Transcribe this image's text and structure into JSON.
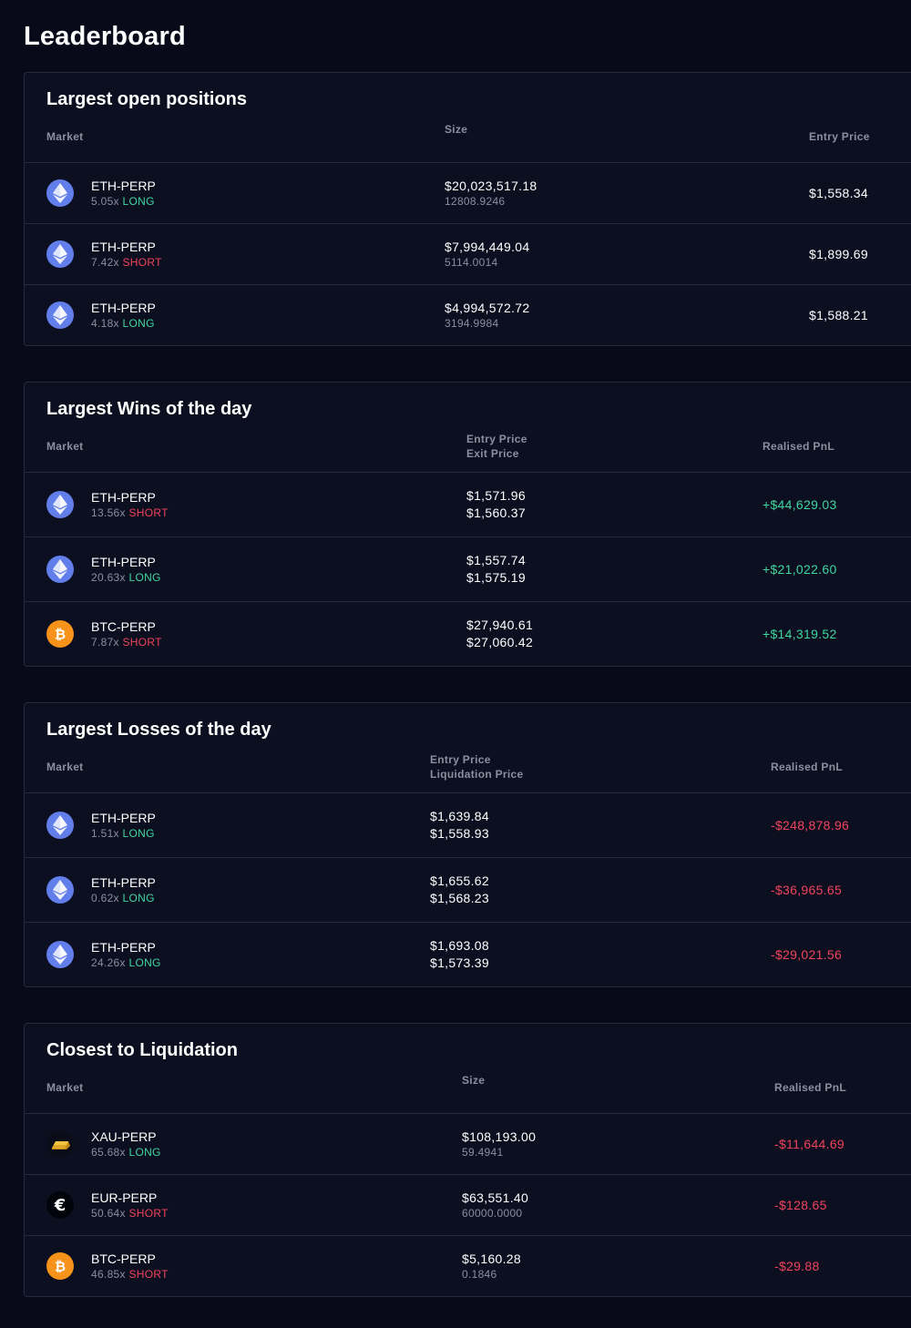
{
  "page": {
    "title": "Leaderboard"
  },
  "open_positions": {
    "title": "Largest open positions",
    "headers": {
      "market": "Market",
      "size": "Size",
      "entry": "Entry Price"
    },
    "rows": [
      {
        "market": "ETH-PERP",
        "icon": "eth-icon",
        "leverage": "5.05x",
        "side": "LONG",
        "size": "$20,023,517.18",
        "amount": "12808.9246",
        "entry": "$1,558.34"
      },
      {
        "market": "ETH-PERP",
        "icon": "eth-icon",
        "leverage": "7.42x",
        "side": "SHORT",
        "size": "$7,994,449.04",
        "amount": "5114.0014",
        "entry": "$1,899.69"
      },
      {
        "market": "ETH-PERP",
        "icon": "eth-icon",
        "leverage": "4.18x",
        "side": "LONG",
        "size": "$4,994,572.72",
        "amount": "3194.9984",
        "entry": "$1,588.21"
      }
    ]
  },
  "wins": {
    "title": "Largest Wins of the day",
    "headers": {
      "market": "Market",
      "price1": "Entry Price",
      "price2": "Exit Price",
      "pnl": "Realised PnL"
    },
    "rows": [
      {
        "market": "ETH-PERP",
        "icon": "eth-icon",
        "leverage": "13.56x",
        "side": "SHORT",
        "price1": "$1,571.96",
        "price2": "$1,560.37",
        "pnl": "+$44,629.03"
      },
      {
        "market": "ETH-PERP",
        "icon": "eth-icon",
        "leverage": "20.63x",
        "side": "LONG",
        "price1": "$1,557.74",
        "price2": "$1,575.19",
        "pnl": "+$21,022.60"
      },
      {
        "market": "BTC-PERP",
        "icon": "btc-icon",
        "leverage": "7.87x",
        "side": "SHORT",
        "price1": "$27,940.61",
        "price2": "$27,060.42",
        "pnl": "+$14,319.52"
      }
    ]
  },
  "losses": {
    "title": "Largest Losses of the day",
    "headers": {
      "market": "Market",
      "price1": "Entry Price",
      "price2": "Liquidation Price",
      "pnl": "Realised PnL"
    },
    "rows": [
      {
        "market": "ETH-PERP",
        "icon": "eth-icon",
        "leverage": "1.51x",
        "side": "LONG",
        "price1": "$1,639.84",
        "price2": "$1,558.93",
        "pnl": "-$248,878.96"
      },
      {
        "market": "ETH-PERP",
        "icon": "eth-icon",
        "leverage": "0.62x",
        "side": "LONG",
        "price1": "$1,655.62",
        "price2": "$1,568.23",
        "pnl": "-$36,965.65"
      },
      {
        "market": "ETH-PERP",
        "icon": "eth-icon",
        "leverage": "24.26x",
        "side": "LONG",
        "price1": "$1,693.08",
        "price2": "$1,573.39",
        "pnl": "-$29,021.56"
      }
    ]
  },
  "liquidation": {
    "title": "Closest to Liquidation",
    "headers": {
      "market": "Market",
      "size": "Size",
      "pnl": "Realised PnL"
    },
    "rows": [
      {
        "market": "XAU-PERP",
        "icon": "gold-bar-icon",
        "leverage": "65.68x",
        "side": "LONG",
        "size": "$108,193.00",
        "amount": "59.4941",
        "pnl": "-$11,644.69"
      },
      {
        "market": "EUR-PERP",
        "icon": "euro-icon",
        "leverage": "50.64x",
        "side": "SHORT",
        "size": "$63,551.40",
        "amount": "60000.0000",
        "pnl": "-$128.65"
      },
      {
        "market": "BTC-PERP",
        "icon": "btc-icon",
        "leverage": "46.85x",
        "side": "SHORT",
        "size": "$5,160.28",
        "amount": "0.1846",
        "pnl": "-$29.88"
      }
    ]
  },
  "colors": {
    "background": "#080a1a",
    "long": "#3fd6a0",
    "short": "#f0445c",
    "eth": "#627eea",
    "btc": "#f7931a"
  }
}
